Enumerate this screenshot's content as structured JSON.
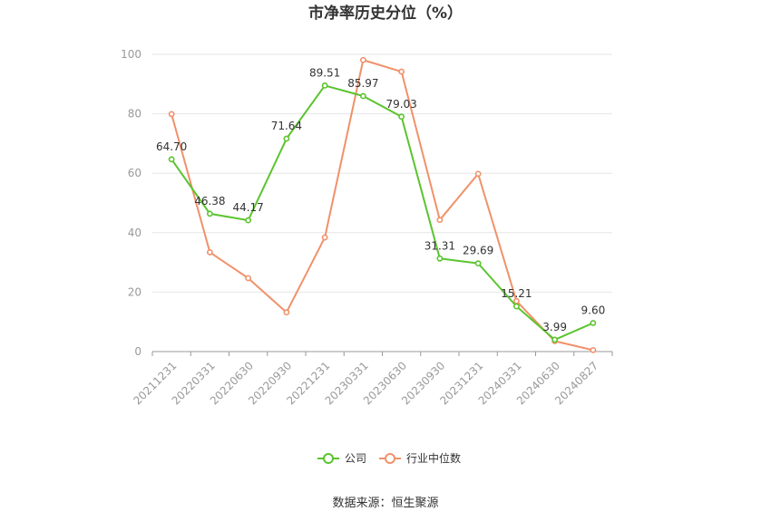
{
  "chart_data": {
    "type": "line",
    "title": "市净率历史分位（%）",
    "categories": [
      "20211231",
      "20220331",
      "20220630",
      "20220930",
      "20221231",
      "20230331",
      "20230630",
      "20230930",
      "20231231",
      "20240331",
      "20240630",
      "20240827"
    ],
    "series": [
      {
        "name": "公司",
        "color": "#5bc42e",
        "values": [
          64.7,
          46.38,
          44.17,
          71.64,
          89.51,
          85.97,
          79.03,
          31.31,
          29.69,
          15.21,
          3.99,
          9.6
        ],
        "labels": true
      },
      {
        "name": "行业中位数",
        "color": "#f0916a",
        "values": [
          79.9,
          33.4,
          24.7,
          13.2,
          38.4,
          98.1,
          94.2,
          44.3,
          59.8,
          17.0,
          3.5,
          0.5
        ],
        "labels": false
      }
    ],
    "ylim": [
      0,
      100
    ],
    "yticks": [
      0,
      20,
      40,
      60,
      80,
      100
    ],
    "grid": true,
    "legend_position": "bottom-center",
    "source": "数据来源：恒生聚源"
  }
}
